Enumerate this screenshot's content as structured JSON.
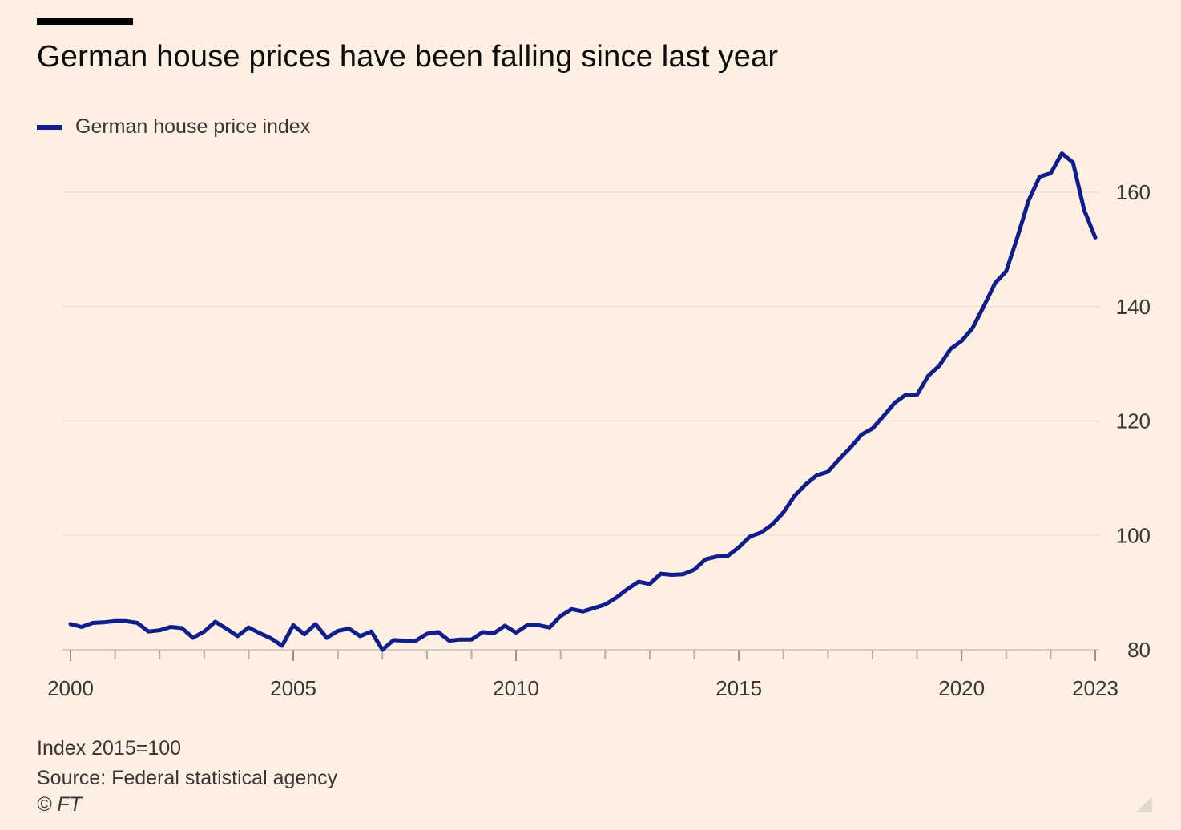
{
  "header": {
    "title": "German house prices have been falling since last year"
  },
  "footer": {
    "note": "Index 2015=100",
    "source": "Source: Federal statistical agency",
    "credit": "© FT"
  },
  "colors": {
    "background": "#fdf0e3",
    "series": "#0f1e8c",
    "gridline": "#ece1d4",
    "tick_text": "#3a3735"
  },
  "chart_data": {
    "type": "line",
    "title": "German house prices have been falling since last year",
    "xlabel": "",
    "ylabel": "",
    "xlim": [
      2000,
      2023
    ],
    "ylim": [
      80,
      170
    ],
    "x_ticks": [
      2000,
      2005,
      2010,
      2015,
      2020,
      2023
    ],
    "x_tick_labels": [
      "2000",
      "2005",
      "2010",
      "2015",
      "2020",
      "2023"
    ],
    "y_ticks": [
      80,
      100,
      120,
      140,
      160
    ],
    "y_tick_labels": [
      "80",
      "100",
      "120",
      "140",
      "160"
    ],
    "y_axis_position": "right",
    "grid": true,
    "legend_position": "top-left",
    "series": [
      {
        "name": "German house price index",
        "x": [
          2000.0,
          2000.25,
          2000.5,
          2000.75,
          2001.0,
          2001.25,
          2001.5,
          2001.75,
          2002.0,
          2002.25,
          2002.5,
          2002.75,
          2003.0,
          2003.25,
          2003.5,
          2003.75,
          2004.0,
          2004.25,
          2004.5,
          2004.75,
          2005.0,
          2005.25,
          2005.5,
          2005.75,
          2006.0,
          2006.25,
          2006.5,
          2006.75,
          2007.0,
          2007.25,
          2007.5,
          2007.75,
          2008.0,
          2008.25,
          2008.5,
          2008.75,
          2009.0,
          2009.25,
          2009.5,
          2009.75,
          2010.0,
          2010.25,
          2010.5,
          2010.75,
          2011.0,
          2011.25,
          2011.5,
          2011.75,
          2012.0,
          2012.25,
          2012.5,
          2012.75,
          2013.0,
          2013.25,
          2013.5,
          2013.75,
          2014.0,
          2014.25,
          2014.5,
          2014.75,
          2015.0,
          2015.25,
          2015.5,
          2015.75,
          2016.0,
          2016.25,
          2016.5,
          2016.75,
          2017.0,
          2017.25,
          2017.5,
          2017.75,
          2018.0,
          2018.25,
          2018.5,
          2018.75,
          2019.0,
          2019.25,
          2019.5,
          2019.75,
          2020.0,
          2020.25,
          2020.5,
          2020.75,
          2021.0,
          2021.25,
          2021.5,
          2021.75,
          2022.0,
          2022.25,
          2022.5,
          2022.75,
          2023.0
        ],
        "values": [
          84.5,
          84.0,
          84.7,
          84.8,
          85.0,
          85.0,
          84.7,
          83.2,
          83.4,
          84.0,
          83.8,
          82.1,
          83.2,
          84.9,
          83.7,
          82.4,
          83.9,
          82.9,
          82.0,
          80.7,
          84.3,
          82.7,
          84.5,
          82.1,
          83.3,
          83.7,
          82.4,
          83.2,
          80.0,
          81.7,
          81.6,
          81.6,
          82.8,
          83.1,
          81.6,
          81.8,
          81.8,
          83.1,
          82.9,
          84.2,
          83.0,
          84.3,
          84.3,
          83.9,
          85.9,
          87.1,
          86.7,
          87.3,
          87.9,
          89.1,
          90.6,
          91.9,
          91.5,
          93.3,
          93.1,
          93.2,
          94.0,
          95.8,
          96.3,
          96.4,
          97.9,
          99.8,
          100.5,
          101.9,
          104.0,
          106.9,
          108.9,
          110.5,
          111.1,
          113.3,
          115.3,
          117.6,
          118.7,
          120.9,
          123.2,
          124.6,
          124.6,
          127.9,
          129.7,
          132.6,
          134.0,
          136.3,
          140.1,
          144.1,
          146.2,
          152.1,
          158.5,
          162.7,
          163.3,
          166.8,
          165.2,
          156.9,
          152.1
        ]
      }
    ]
  }
}
